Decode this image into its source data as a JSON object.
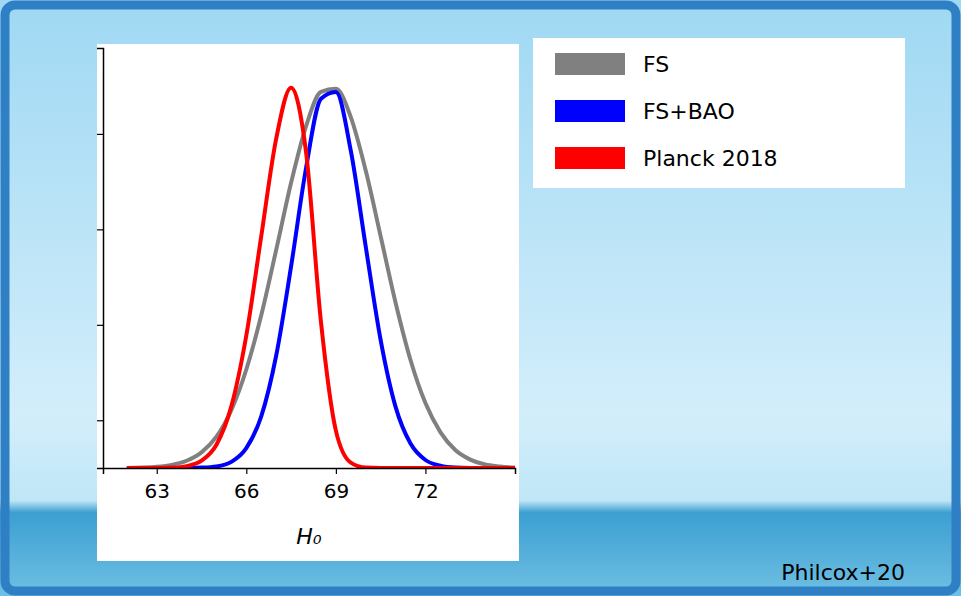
{
  "chart_data": {
    "type": "line",
    "x": [
      62,
      62.5,
      63,
      63.5,
      64,
      64.5,
      65,
      65.5,
      66,
      66.5,
      67,
      67.5,
      68,
      68.5,
      69,
      69.5,
      70,
      70.5,
      71,
      71.5,
      72,
      72.5,
      73,
      73.5,
      74,
      74.5,
      75
    ],
    "series": [
      {
        "name": "FS",
        "color": "#808080",
        "values": [
          0.0003,
          0.001,
          0.003,
          0.008,
          0.019,
          0.041,
          0.082,
          0.152,
          0.258,
          0.4,
          0.571,
          0.747,
          0.895,
          0.985,
          0.993,
          0.919,
          0.779,
          0.607,
          0.433,
          0.283,
          0.17,
          0.094,
          0.047,
          0.022,
          0.009,
          0.004,
          0.001
        ]
      },
      {
        "name": "FS+BAO",
        "color": "#0000ff",
        "values": [
          0,
          0,
          0,
          0,
          0.0002,
          0.001,
          0.004,
          0.016,
          0.052,
          0.135,
          0.294,
          0.528,
          0.785,
          0.967,
          0.985,
          0.831,
          0.58,
          0.335,
          0.16,
          0.064,
          0.021,
          0.006,
          0.001,
          0,
          0,
          0,
          0
        ]
      },
      {
        "name": "Planck 2018",
        "color": "#ff0000",
        "values": [
          0,
          0,
          0.0002,
          0.001,
          0.005,
          0.019,
          0.061,
          0.162,
          0.347,
          0.607,
          0.862,
          0.996,
          0.828,
          0.383,
          0.098,
          0.014,
          0.001,
          0,
          0,
          0,
          0,
          0,
          0,
          0,
          0,
          0,
          0
        ]
      }
    ],
    "xlim": [
      61.2,
      75
    ],
    "xticks": [
      63,
      66,
      69,
      72
    ],
    "ylim": [
      0,
      1.1
    ],
    "yticks": [
      0.125,
      0.375,
      0.625,
      0.875
    ],
    "tick_labels": "x",
    "xlabel": "H₀",
    "legend": "upper right",
    "annotation": "Philcox+20"
  }
}
